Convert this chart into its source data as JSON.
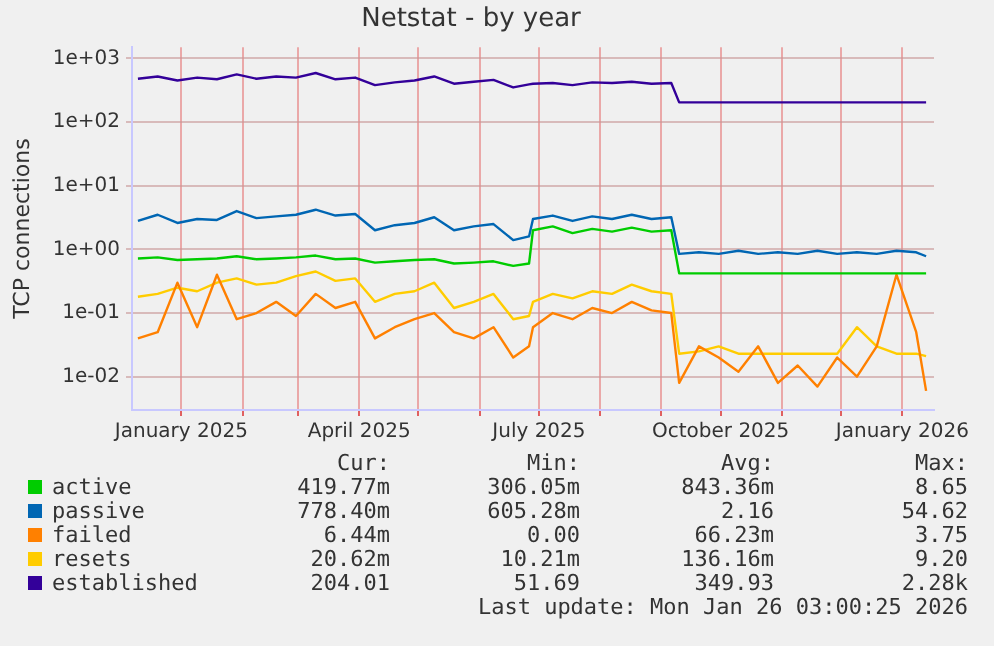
{
  "chart_data": {
    "type": "line",
    "title": "Netstat - by year",
    "ylabel": "TCP connections",
    "log": "y",
    "grid": true,
    "legend": "bottom",
    "marker": "none",
    "line_style": "solid",
    "x": [
      "2024-12-10",
      "2024-12-20",
      "2024-12-30",
      "2025-01-09",
      "2025-01-19",
      "2025-01-29",
      "2025-02-08",
      "2025-02-18",
      "2025-02-28",
      "2025-03-10",
      "2025-03-20",
      "2025-03-30",
      "2025-04-09",
      "2025-04-19",
      "2025-04-29",
      "2025-05-09",
      "2025-05-19",
      "2025-05-29",
      "2025-06-08",
      "2025-06-18",
      "2025-06-26",
      "2025-06-28",
      "2025-07-08",
      "2025-07-18",
      "2025-07-28",
      "2025-08-07",
      "2025-08-17",
      "2025-08-27",
      "2025-09-06",
      "2025-09-10",
      "2025-09-20",
      "2025-09-30",
      "2025-10-10",
      "2025-10-20",
      "2025-10-30",
      "2025-11-09",
      "2025-11-19",
      "2025-11-29",
      "2025-12-09",
      "2025-12-19",
      "2025-12-29",
      "2026-01-08",
      "2026-01-13"
    ],
    "xlim": [
      "2024-12-07",
      "2026-01-17"
    ],
    "xticks": [
      {
        "value": "2025-01-01",
        "label": "January 2025"
      },
      {
        "value": "2025-02-01",
        "label": null
      },
      {
        "value": "2025-03-01",
        "label": null
      },
      {
        "value": "2025-04-01",
        "label": "April 2025"
      },
      {
        "value": "2025-05-01",
        "label": null
      },
      {
        "value": "2025-06-01",
        "label": null
      },
      {
        "value": "2025-07-01",
        "label": "July 2025"
      },
      {
        "value": "2025-08-01",
        "label": null
      },
      {
        "value": "2025-09-01",
        "label": null
      },
      {
        "value": "2025-10-01",
        "label": "October 2025"
      },
      {
        "value": "2025-11-01",
        "label": null
      },
      {
        "value": "2025-12-01",
        "label": null
      },
      {
        "value": "2026-01-01",
        "label": "January 2026"
      }
    ],
    "ylim": [
      0.003,
      1500
    ],
    "yticks": [
      {
        "value": 0.01,
        "label": "1e-02"
      },
      {
        "value": 0.1,
        "label": "1e-01"
      },
      {
        "value": 1,
        "label": "1e+00"
      },
      {
        "value": 10,
        "label": "1e+01"
      },
      {
        "value": 100,
        "label": "1e+02"
      },
      {
        "value": 1000,
        "label": "1e+03"
      }
    ],
    "series": [
      {
        "name": "active",
        "color": "#00cc00",
        "values": [
          0.72,
          0.75,
          0.68,
          0.7,
          0.72,
          0.78,
          0.7,
          0.72,
          0.75,
          0.8,
          0.7,
          0.72,
          0.62,
          0.65,
          0.68,
          0.7,
          0.6,
          0.62,
          0.65,
          0.55,
          0.6,
          2.0,
          2.3,
          1.8,
          2.1,
          1.9,
          2.2,
          1.9,
          2.0,
          0.42,
          0.42,
          0.42,
          0.42,
          0.42,
          0.42,
          0.42,
          0.42,
          0.42,
          0.42,
          0.42,
          0.42,
          0.42,
          0.42
        ]
      },
      {
        "name": "passive",
        "color": "#0066b3",
        "values": [
          2.8,
          3.5,
          2.6,
          3.0,
          2.9,
          4.0,
          3.1,
          3.3,
          3.5,
          4.2,
          3.4,
          3.6,
          2.0,
          2.4,
          2.6,
          3.2,
          2.0,
          2.3,
          2.5,
          1.4,
          1.6,
          3.0,
          3.4,
          2.8,
          3.3,
          3.0,
          3.5,
          3.0,
          3.2,
          0.85,
          0.9,
          0.85,
          0.95,
          0.85,
          0.9,
          0.85,
          0.95,
          0.85,
          0.9,
          0.85,
          0.95,
          0.9,
          0.78
        ]
      },
      {
        "name": "failed",
        "color": "#ff8000",
        "values": [
          0.04,
          0.05,
          0.3,
          0.06,
          0.4,
          0.08,
          0.1,
          0.15,
          0.09,
          0.2,
          0.12,
          0.15,
          0.04,
          0.06,
          0.08,
          0.1,
          0.05,
          0.04,
          0.06,
          0.02,
          0.03,
          0.06,
          0.1,
          0.08,
          0.12,
          0.1,
          0.15,
          0.11,
          0.1,
          0.008,
          0.03,
          0.02,
          0.012,
          0.03,
          0.008,
          0.015,
          0.007,
          0.02,
          0.01,
          0.03,
          0.4,
          0.05,
          0.006
        ]
      },
      {
        "name": "resets",
        "color": "#ffcc00",
        "values": [
          0.18,
          0.2,
          0.25,
          0.22,
          0.3,
          0.35,
          0.28,
          0.3,
          0.38,
          0.45,
          0.32,
          0.35,
          0.15,
          0.2,
          0.22,
          0.3,
          0.12,
          0.15,
          0.2,
          0.08,
          0.09,
          0.15,
          0.2,
          0.17,
          0.22,
          0.2,
          0.28,
          0.22,
          0.2,
          0.023,
          0.025,
          0.03,
          0.023,
          0.023,
          0.023,
          0.023,
          0.023,
          0.023,
          0.06,
          0.03,
          0.023,
          0.023,
          0.021
        ]
      },
      {
        "name": "established",
        "color": "#330099",
        "values": [
          480,
          520,
          450,
          500,
          470,
          560,
          480,
          520,
          500,
          590,
          470,
          500,
          380,
          420,
          450,
          520,
          400,
          430,
          460,
          350,
          390,
          400,
          410,
          380,
          420,
          410,
          430,
          400,
          410,
          204,
          204,
          204,
          204,
          204,
          204,
          204,
          204,
          204,
          204,
          204,
          204,
          204,
          204
        ]
      }
    ],
    "annotations": [
      "Cur:",
      "Min:",
      "Avg:",
      "Max:",
      "419.77m",
      "306.05m",
      "843.36m",
      "8.65",
      "778.40m",
      "605.28m",
      "2.16",
      "54.62",
      "6.44m",
      "0.00",
      "66.23m",
      "3.75",
      "20.62m",
      "10.21m",
      "136.16m",
      "9.20",
      "204.01",
      "51.69",
      "349.93",
      "2.28k",
      "Last update: Mon Jan 26 03:00:25 2026"
    ]
  }
}
